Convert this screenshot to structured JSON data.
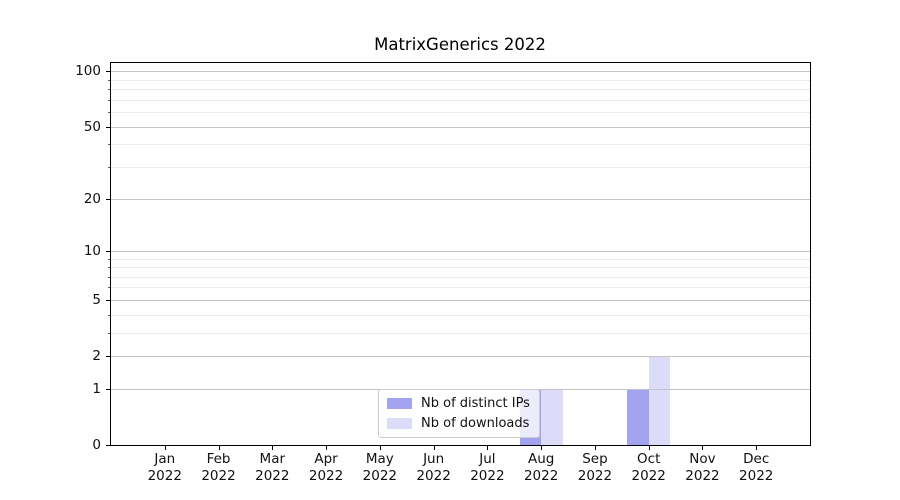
{
  "chart_data": {
    "type": "bar",
    "title": "MatrixGenerics 2022",
    "x_tick_months": [
      "Jan",
      "Feb",
      "Mar",
      "Apr",
      "May",
      "Jun",
      "Jul",
      "Aug",
      "Sep",
      "Oct",
      "Nov",
      "Dec"
    ],
    "x_tick_year": "2022",
    "series": [
      {
        "name": "Nb of distinct IPs",
        "color": "#a2a2ef",
        "values": [
          0,
          0,
          0,
          0,
          0,
          0,
          0,
          1,
          0,
          1,
          0,
          0
        ]
      },
      {
        "name": "Nb of downloads",
        "color": "#dcdcf8",
        "values": [
          0,
          0,
          0,
          0,
          0,
          0,
          0,
          1,
          0,
          2,
          0,
          0
        ]
      }
    ],
    "yscale": "log1p",
    "ylim": [
      0,
      111
    ],
    "y_major_ticks": [
      0,
      1,
      2,
      5,
      10,
      20,
      50,
      100
    ],
    "y_minor_ticks": [
      3,
      4,
      6,
      7,
      8,
      9,
      30,
      40,
      60,
      70,
      80,
      90
    ],
    "grid": "horizontal",
    "legend_position": "lower-center",
    "colors": {
      "grid_major": "#c3c3c3",
      "grid_minor": "#eaeaea",
      "axis": "#000000",
      "text": "#111111"
    }
  }
}
